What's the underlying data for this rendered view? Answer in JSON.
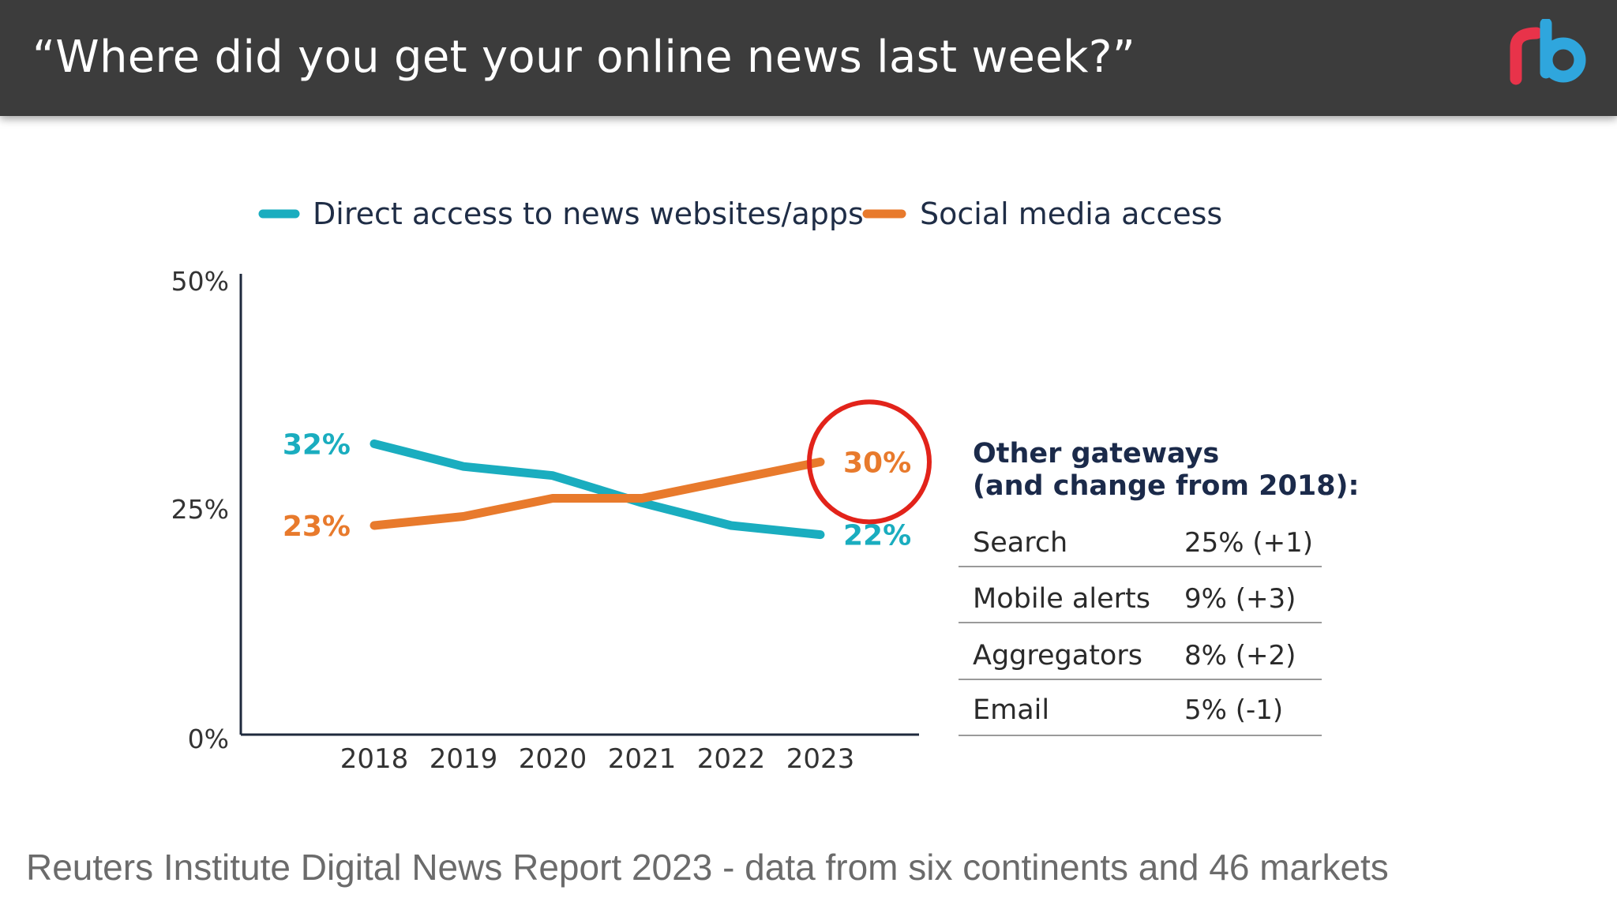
{
  "header": {
    "title": "“Where did you get your online news last week?”",
    "logo_icon": "rb-logo-icon",
    "logo_colors": [
      "#e8334a",
      "#2fa6dd"
    ]
  },
  "chart_data": {
    "type": "line",
    "categories": [
      "2018",
      "2019",
      "2020",
      "2021",
      "2022",
      "2023"
    ],
    "series": [
      {
        "name": "Direct access to news websites/apps",
        "values": [
          32,
          29.5,
          28.5,
          25.5,
          23,
          22
        ],
        "color": "#1aadbf",
        "start_label": "32%",
        "end_label": "22%"
      },
      {
        "name": "Social media access",
        "values": [
          23,
          24,
          26,
          26,
          28,
          30
        ],
        "color": "#e87a2c",
        "start_label": "23%",
        "end_label": "30%"
      }
    ],
    "ylim": [
      0,
      50
    ],
    "yticks": [
      {
        "value": 0,
        "label": "0%"
      },
      {
        "value": 25,
        "label": "25%"
      },
      {
        "value": 50,
        "label": "50%"
      }
    ],
    "legend_position": "top",
    "annotation": {
      "type": "circle",
      "target": "Social media access 2023",
      "color": "#e2231a"
    },
    "side_table": {
      "title_line1": "Other gateways",
      "title_line2": "(and change from 2018):",
      "rows": [
        {
          "label": "Search",
          "value": "25% (+1)"
        },
        {
          "label": "Mobile alerts",
          "value": "9% (+3)"
        },
        {
          "label": "Aggregators",
          "value": "8% (+2)"
        },
        {
          "label": "Email",
          "value": "5% (-1)"
        }
      ]
    }
  },
  "caption": "Reuters Institute Digital News Report 2023 - data from six continents and 46 markets"
}
